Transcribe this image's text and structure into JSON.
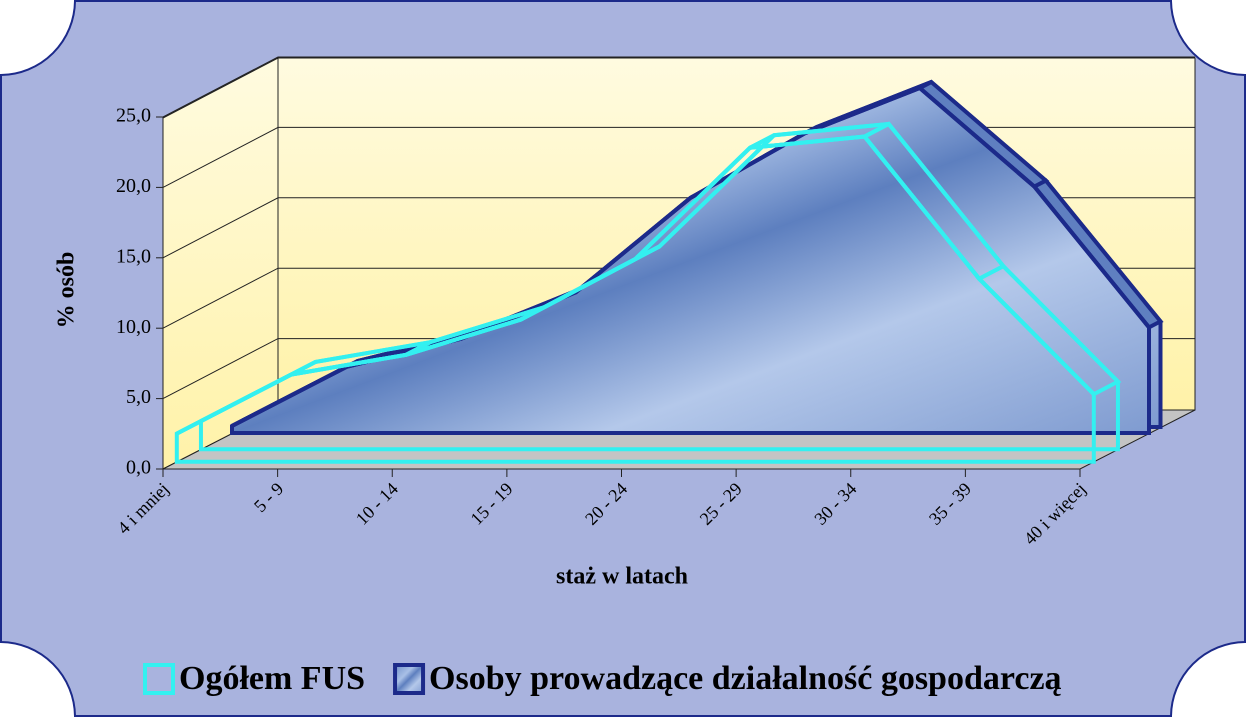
{
  "chart_data": {
    "type": "area3d",
    "x_label": "staż w latach",
    "y_label": "% osób",
    "categories": [
      "4 i mniej",
      "5 - 9",
      "10 - 14",
      "15 - 19",
      "20 - 24",
      "25 - 29",
      "30 - 34",
      "35 - 39",
      "40 i więcej"
    ],
    "series": [
      {
        "name": "Ogółem FUS",
        "color": "#33f0f0",
        "values": [
          2.0,
          6.2,
          7.6,
          10.1,
          14.4,
          22.3,
          23.1,
          13.0,
          4.8
        ]
      },
      {
        "name": "Osoby prowadzące działalność gospodarczą",
        "color": "#1c2a8a",
        "values": [
          0.5,
          4.7,
          6.7,
          10.0,
          16.7,
          21.3,
          24.5,
          17.5,
          7.5
        ]
      }
    ],
    "ylim": [
      0,
      25
    ],
    "yticks": [
      {
        "value": 0,
        "label": "0,0"
      },
      {
        "value": 5,
        "label": "5,0"
      },
      {
        "value": 10,
        "label": "10,0"
      },
      {
        "value": 15,
        "label": "15,0"
      },
      {
        "value": 20,
        "label": "20,0"
      },
      {
        "value": 25,
        "label": "25,0"
      }
    ],
    "grid": true,
    "legend": "bottom"
  }
}
